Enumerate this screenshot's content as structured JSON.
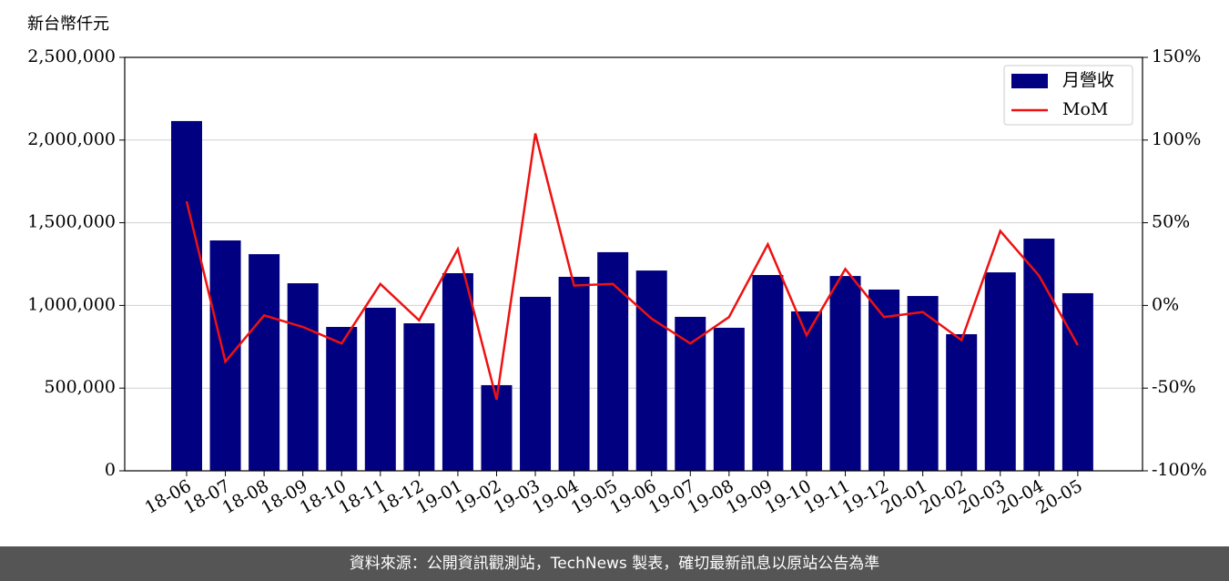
{
  "chart_data": {
    "type": "bar_line",
    "y_label": "新台幣仟元",
    "categories": [
      "18-06",
      "18-07",
      "18-08",
      "18-09",
      "18-10",
      "18-11",
      "18-12",
      "19-01",
      "19-02",
      "19-03",
      "19-04",
      "19-05",
      "19-06",
      "19-07",
      "19-08",
      "19-09",
      "19-10",
      "19-11",
      "19-12",
      "20-01",
      "20-02",
      "20-03",
      "20-04",
      "20-05"
    ],
    "series": [
      {
        "name": "月營收",
        "type": "bar",
        "color": "#000080",
        "values": [
          2115000,
          1393000,
          1310000,
          1134000,
          870000,
          986000,
          892000,
          1195000,
          518000,
          1052000,
          1173000,
          1322000,
          1211000,
          931000,
          865000,
          1184000,
          964000,
          1178000,
          1096000,
          1057000,
          826000,
          1200000,
          1404000,
          1074000
        ]
      },
      {
        "name": "MoM",
        "type": "line",
        "axis": "y2",
        "color": "#ee1111",
        "values": [
          63,
          -34,
          -6,
          -13,
          -23,
          13,
          -9,
          34,
          -57,
          104,
          12,
          13,
          -8,
          -23,
          -7,
          37,
          -18,
          22,
          -7,
          -4,
          -21,
          45,
          18,
          -24
        ]
      }
    ],
    "ylim": [
      0,
      2500000
    ],
    "yticks": [
      0,
      {
        "value": 500000,
        "label": "500,000"
      },
      {
        "value": 1000000,
        "label": "1,000,000"
      },
      {
        "value": 1500000,
        "label": "1,500,000"
      },
      {
        "value": 2000000,
        "label": "2,000,000"
      },
      {
        "value": 2500000,
        "label": "2,500,000"
      }
    ],
    "y2lim": [
      -100,
      150
    ],
    "y2ticks": [
      {
        "value": -100,
        "label": "-100%"
      },
      {
        "value": -50,
        "label": "-50%"
      },
      {
        "value": 0,
        "label": "0%"
      },
      {
        "value": 50,
        "label": "50%"
      },
      {
        "value": 100,
        "label": "100%"
      },
      {
        "value": 150,
        "label": "150%"
      }
    ],
    "grid": true,
    "legend": "upper right"
  },
  "footer": "資料來源：公開資訊觀測站，TechNews 製表，確切最新訊息以原站公告為準"
}
